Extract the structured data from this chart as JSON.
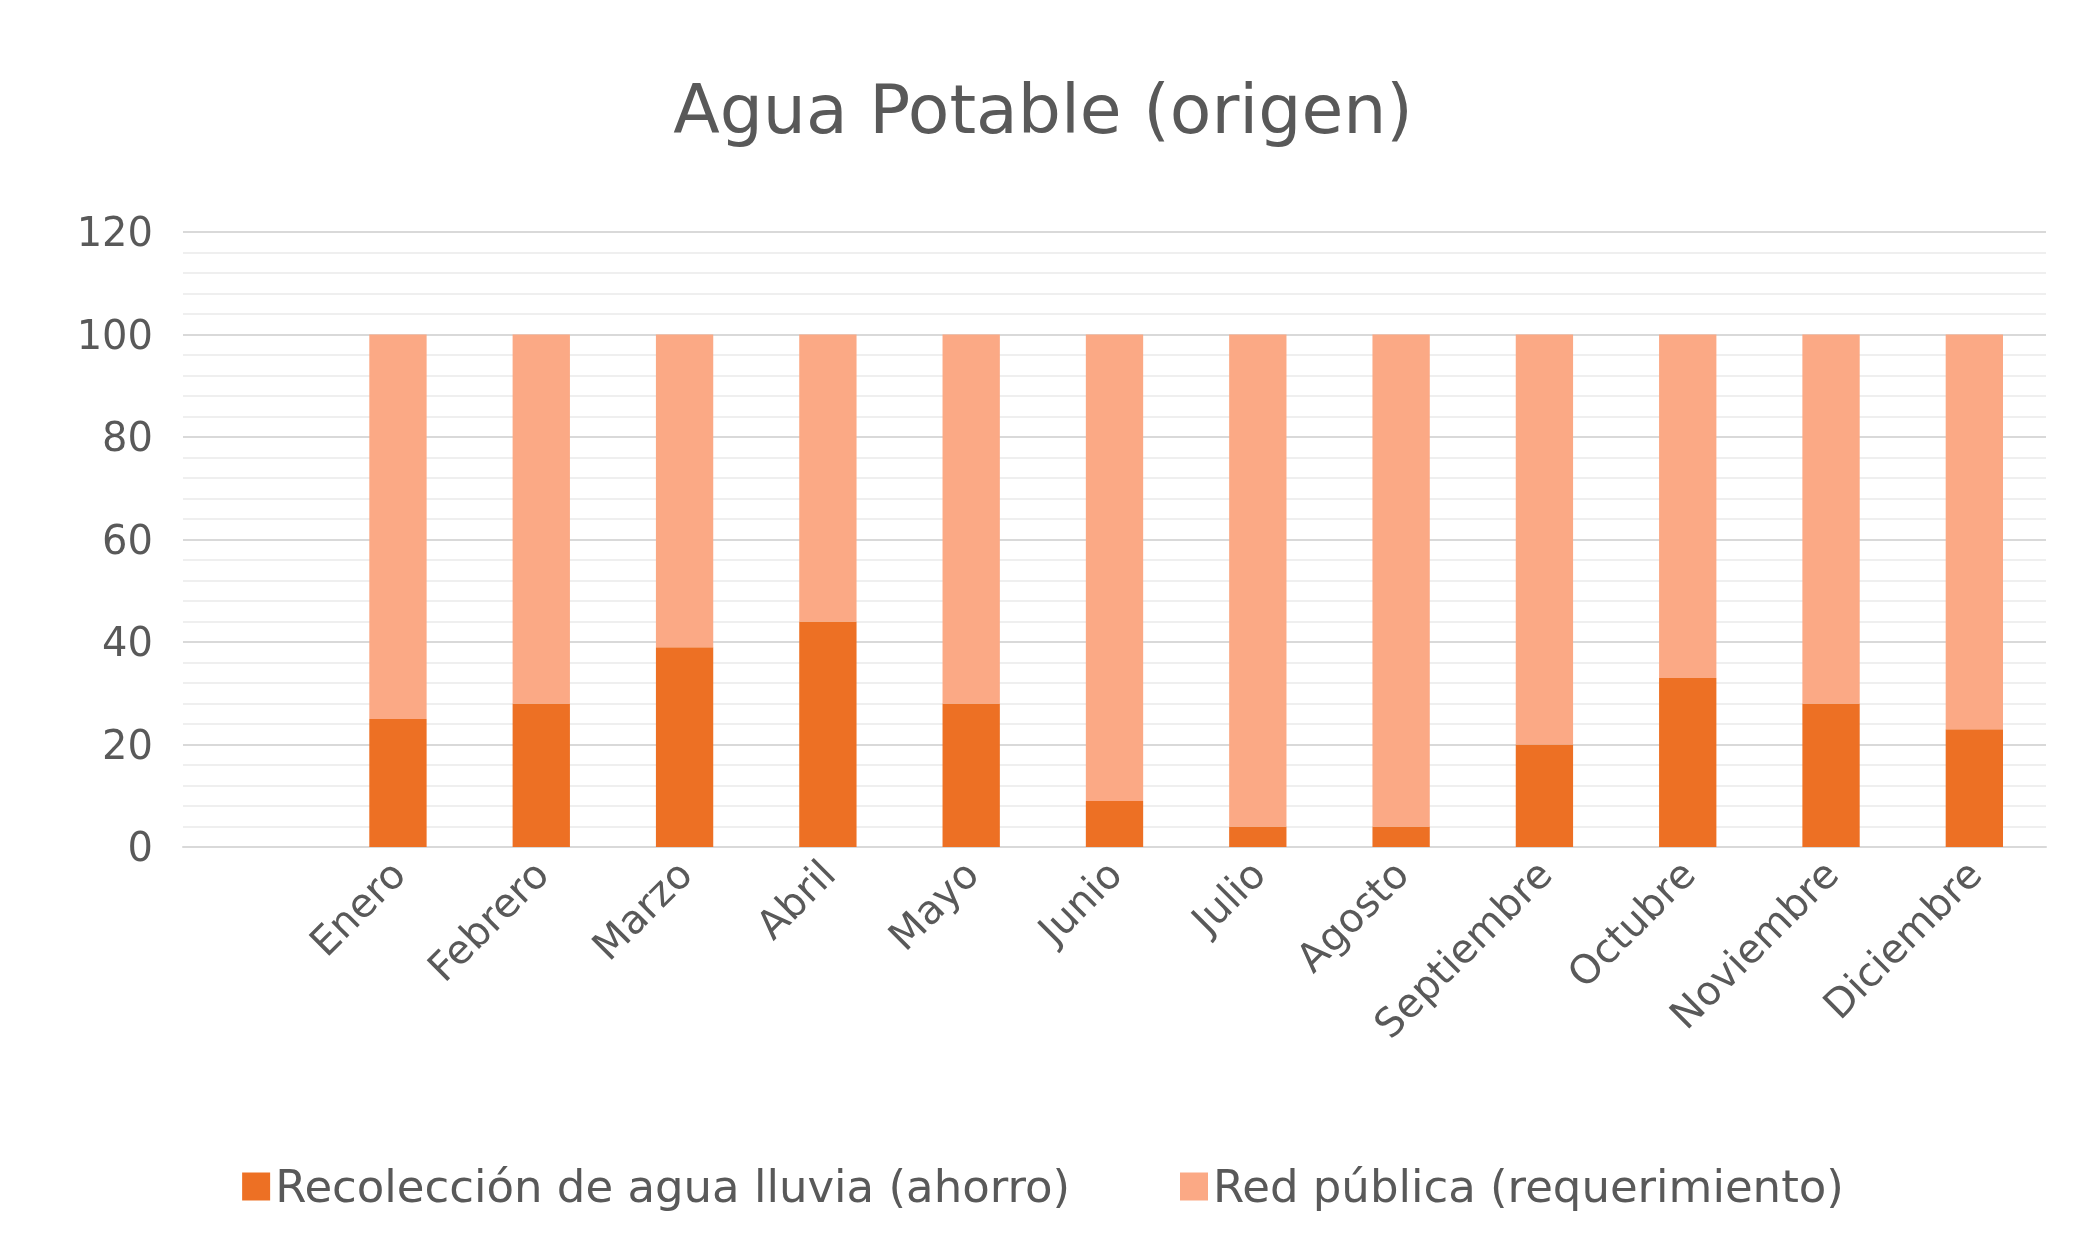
{
  "chart_data": {
    "type": "bar",
    "title": "Agua Potable (origen)",
    "stacked": true,
    "categories": [
      null,
      "Enero",
      "Febrero",
      "Marzo",
      "Abril",
      "Mayo",
      "Junio",
      "Julio",
      "Agosto",
      "Septiembre",
      "Octubre",
      "Noviembre",
      "Diciembre"
    ],
    "series": [
      {
        "name": "Recolección de agua lluvia (ahorro)",
        "color": "#ed7024",
        "values": [
          null,
          25,
          28,
          39,
          44,
          28,
          9,
          4,
          4,
          20,
          33,
          28,
          23
        ]
      },
      {
        "name": "Red pública (requerimiento)",
        "color": "#fba985",
        "values": [
          null,
          75,
          72,
          61,
          56,
          72,
          91,
          96,
          96,
          80,
          67,
          72,
          77
        ]
      }
    ],
    "ylim": [
      0,
      120
    ],
    "yticks": [
      0,
      20,
      40,
      60,
      80,
      100,
      120
    ],
    "grid": "y",
    "legend": "bottom"
  }
}
